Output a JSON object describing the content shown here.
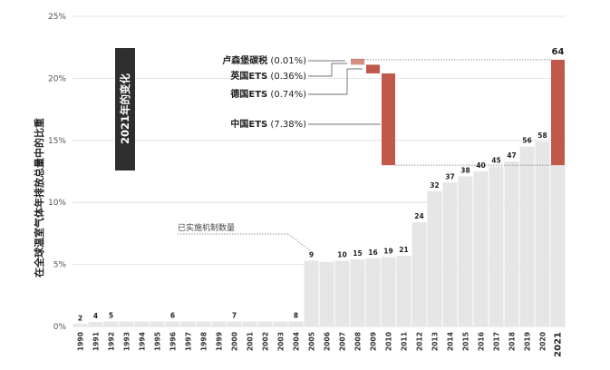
{
  "chart_data": {
    "type": "bar",
    "ylabel": "在全球温室气体年排放总量中的比重",
    "yticks": [
      "0%",
      "5%",
      "10%",
      "15%",
      "20%",
      "25%"
    ],
    "ylim": [
      0,
      25
    ],
    "categories": [
      "1990",
      "1991",
      "1992",
      "1993",
      "1994",
      "1995",
      "1996",
      "1997",
      "1998",
      "1999",
      "2000",
      "2001",
      "2002",
      "2003",
      "2004",
      "2005",
      "2006",
      "2007",
      "2008",
      "2009",
      "2010",
      "2011",
      "2012",
      "2013",
      "2014",
      "2015",
      "2016",
      "2017",
      "2018",
      "2019",
      "2020",
      "2021"
    ],
    "values": [
      0.2,
      0.35,
      0.4,
      0.4,
      0.4,
      0.4,
      0.4,
      0.4,
      0.4,
      0.4,
      0.4,
      0.4,
      0.4,
      0.4,
      0.4,
      5.3,
      5.2,
      5.3,
      5.4,
      5.5,
      5.6,
      5.7,
      8.4,
      10.9,
      11.6,
      12.1,
      12.5,
      12.9,
      13.3,
      14.5,
      14.9,
      13.0
    ],
    "data_labels": [
      {
        "year": "1990",
        "text": "2"
      },
      {
        "year": "1991",
        "text": "4"
      },
      {
        "year": "1992",
        "text": "5"
      },
      {
        "year": "1996",
        "text": "6"
      },
      {
        "year": "2000",
        "text": "7"
      },
      {
        "year": "2004",
        "text": "8"
      },
      {
        "year": "2005",
        "text": "9"
      },
      {
        "year": "2007",
        "text": "10"
      },
      {
        "year": "2008",
        "text": "15"
      },
      {
        "year": "2009",
        "text": "16"
      },
      {
        "year": "2010",
        "text": "19"
      },
      {
        "year": "2011",
        "text": "21"
      },
      {
        "year": "2012",
        "text": "24"
      },
      {
        "year": "2013",
        "text": "32"
      },
      {
        "year": "2014",
        "text": "37"
      },
      {
        "year": "2015",
        "text": "38"
      },
      {
        "year": "2016",
        "text": "40"
      },
      {
        "year": "2017",
        "text": "45"
      },
      {
        "year": "2018",
        "text": "47"
      },
      {
        "year": "2019",
        "text": "56"
      },
      {
        "year": "2020",
        "text": "58"
      },
      {
        "year": "2021",
        "text": "64"
      }
    ],
    "waterfall": [
      {
        "name": "中国ETS",
        "value_label": "(7.38%)",
        "start": 13.0,
        "end": 20.4
      },
      {
        "name": "德国ETS",
        "value_label": "(0.74%)",
        "start": 20.4,
        "end": 21.1
      },
      {
        "name": "英国ETS",
        "value_label": "(0.36%)",
        "start": 21.1,
        "end": 21.5
      },
      {
        "name": "卢森堡碳税",
        "value_label": "(0.01%)",
        "start": 21.5,
        "end": 21.51
      }
    ],
    "final_bar": {
      "year": "2021",
      "start": 13.0,
      "end": 21.5
    },
    "callout": "2021年的变化",
    "note": "已实施机制数量",
    "colors": {
      "bar": "#e6e6e6",
      "accent": "#c0594c",
      "accent_light": "#d98e85",
      "dark": "#2f2e2e",
      "grid": "#dedede"
    },
    "grid": true
  }
}
